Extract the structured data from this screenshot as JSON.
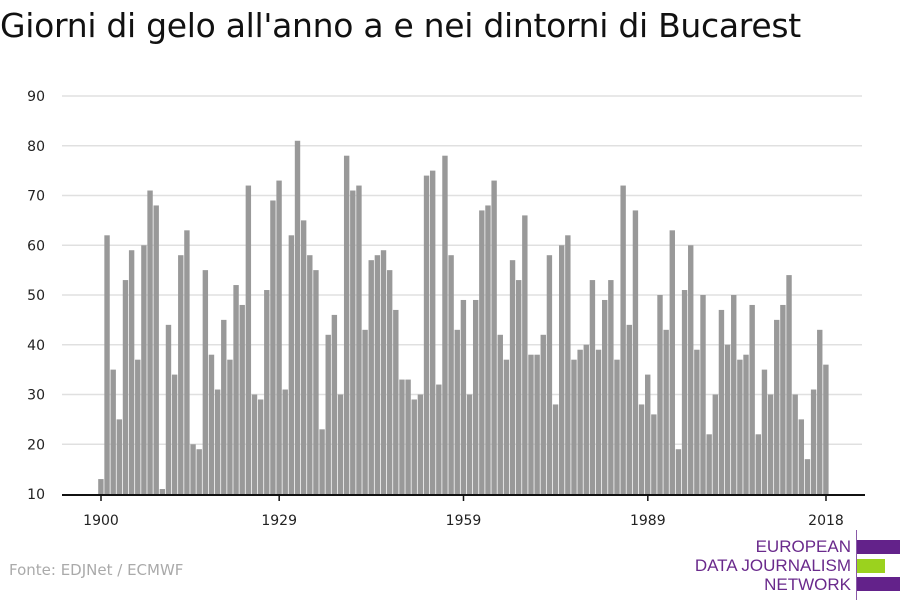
{
  "chart_data": {
    "type": "bar",
    "title": "Giorni di gelo all'anno a e nei dintorni di Bucarest",
    "xlabel": "",
    "ylabel": "",
    "ylim": [
      10,
      90
    ],
    "yticks": [
      10,
      20,
      30,
      40,
      50,
      60,
      70,
      80,
      90
    ],
    "xticks": [
      1900,
      1929,
      1959,
      1989,
      2018
    ],
    "grid": true,
    "bar_color": "#999999",
    "x_start": 1900,
    "values": [
      13,
      62,
      35,
      25,
      53,
      59,
      37,
      60,
      71,
      68,
      11,
      44,
      34,
      58,
      63,
      20,
      19,
      55,
      38,
      31,
      45,
      37,
      52,
      48,
      72,
      30,
      29,
      51,
      69,
      73,
      31,
      62,
      81,
      65,
      58,
      55,
      23,
      42,
      46,
      30,
      78,
      71,
      72,
      43,
      57,
      58,
      59,
      55,
      47,
      33,
      33,
      29,
      30,
      74,
      75,
      32,
      78,
      58,
      43,
      49,
      30,
      49,
      67,
      68,
      73,
      42,
      37,
      57,
      53,
      66,
      38,
      38,
      42,
      58,
      28,
      60,
      62,
      37,
      39,
      40,
      53,
      39,
      49,
      53,
      37,
      72,
      44,
      67,
      28,
      34,
      26,
      50,
      43,
      63,
      19,
      51,
      60,
      39,
      50,
      22,
      30,
      47,
      40,
      50,
      37,
      38,
      48,
      22,
      35,
      30,
      45,
      48,
      54,
      30,
      25,
      17,
      31,
      43,
      36
    ]
  },
  "source": "Fonte: EDJNet / ECMWF",
  "logo": {
    "lines": [
      "EUROPEAN",
      "DATA JOURNALISM",
      "NETWORK"
    ],
    "colors": {
      "purple": "#63228a",
      "green": "#9bd21e"
    }
  }
}
